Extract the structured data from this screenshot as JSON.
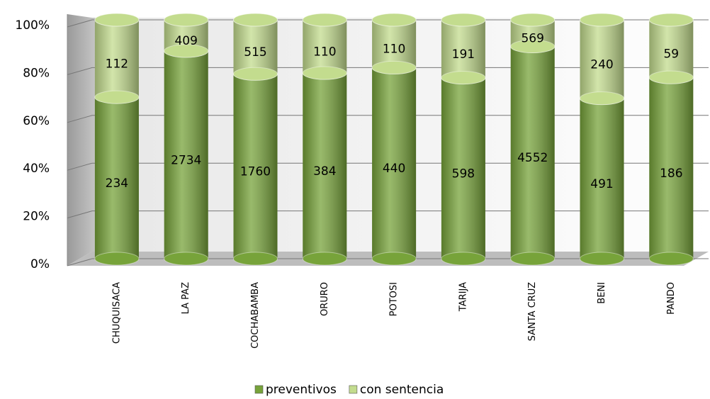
{
  "chart_data": {
    "type": "bar",
    "stacking": "percent",
    "categories": [
      "CHUQUISACA",
      "LA PAZ",
      "COCHABAMBA",
      "ORURO",
      "POTOSI",
      "TARIJA",
      "SANTA CRUZ",
      "BENI",
      "PANDO"
    ],
    "series": [
      {
        "name": "preventivos",
        "color": "#77a33a",
        "values": [
          234,
          2734,
          1760,
          384,
          440,
          598,
          4552,
          491,
          186
        ]
      },
      {
        "name": "con sentencia",
        "color": "#c3dc8e",
        "values": [
          112,
          409,
          515,
          110,
          110,
          191,
          569,
          240,
          59
        ]
      }
    ],
    "ylim": [
      0,
      100
    ],
    "yticks": [
      {
        "value": 0,
        "label": "0%"
      },
      {
        "value": 20,
        "label": "20%"
      },
      {
        "value": 40,
        "label": "40%"
      },
      {
        "value": 60,
        "label": "60%"
      },
      {
        "value": 80,
        "label": "80%"
      },
      {
        "value": 100,
        "label": "100%"
      }
    ],
    "grid": true,
    "legend": "bottom"
  }
}
